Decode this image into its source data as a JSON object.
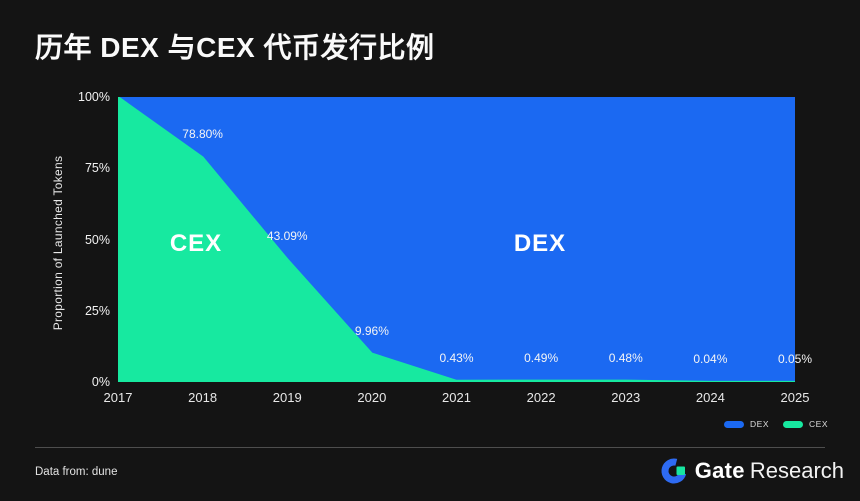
{
  "title": "历年 DEX 与CEX 代币发行比例",
  "chart_data": {
    "type": "area",
    "stacked": true,
    "title": "历年 DEX 与CEX 代币发行比例",
    "categories": [
      "2017",
      "2018",
      "2019",
      "2020",
      "2021",
      "2022",
      "2023",
      "2024",
      "2025"
    ],
    "series": [
      {
        "name": "DEX",
        "color": "#1b69f2",
        "values": [
          0,
          21.2,
          56.91,
          90.04,
          99.57,
          99.51,
          99.52,
          99.96,
          99.95
        ]
      },
      {
        "name": "CEX",
        "color": "#17e9a0",
        "values": [
          100,
          78.8,
          43.09,
          9.96,
          0.43,
          0.49,
          0.48,
          0.04,
          0.05
        ]
      }
    ],
    "point_labels": [
      "",
      "78.80%",
      "43.09%",
      "9.96%",
      "0.43%",
      "0.49%",
      "0.48%",
      "0.04%",
      "0.05%"
    ],
    "ylabel": "Proportion of Launched Tokens",
    "xlabel": "",
    "yticks": [
      "100%",
      "75%",
      "50%",
      "25%",
      "0%"
    ],
    "ylim": [
      0,
      100
    ],
    "grid": false,
    "legend_position": "bottom-right",
    "area_labels": [
      {
        "text": "CEX"
      },
      {
        "text": "DEX"
      }
    ],
    "legend": [
      {
        "label": "DEX",
        "color": "#1b69f2"
      },
      {
        "label": "CEX",
        "color": "#17e9a0"
      }
    ]
  },
  "footer": {
    "source": "Data from: dune",
    "brand": {
      "bold": "Gate",
      "light": "Research"
    }
  },
  "colors": {
    "background": "#141414",
    "dex_blue": "#1b69f2",
    "cex_green": "#17e9a0",
    "brand_blue": "#2e6bf2",
    "brand_green": "#17e6a1"
  }
}
